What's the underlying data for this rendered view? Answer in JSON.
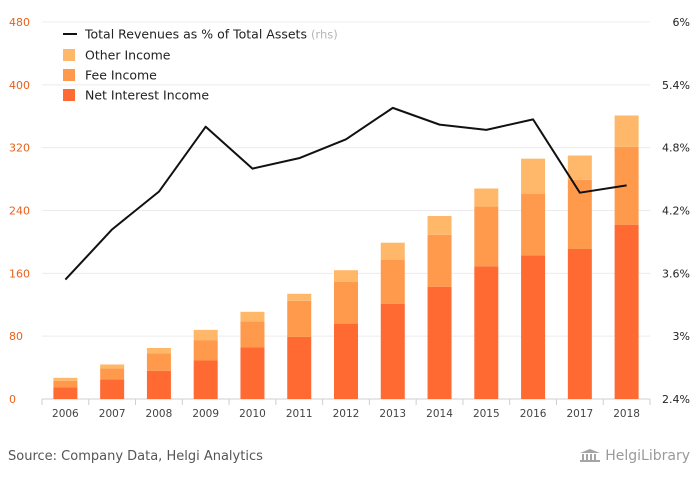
{
  "chart_data": {
    "type": "bar",
    "stacked": true,
    "categories": [
      "2006",
      "2007",
      "2008",
      "2009",
      "2010",
      "2011",
      "2012",
      "2013",
      "2014",
      "2015",
      "2016",
      "2017",
      "2018"
    ],
    "series": [
      {
        "name": "Net Interest Income",
        "color": "#ff6a33",
        "values": [
          15,
          25,
          36,
          49,
          66,
          79,
          96,
          121,
          143,
          169,
          183,
          191,
          222
        ]
      },
      {
        "name": "Fee Income",
        "color": "#ff9a4d",
        "values": [
          8,
          14,
          22,
          26,
          33,
          46,
          53,
          56,
          66,
          76,
          78,
          88,
          99
        ]
      },
      {
        "name": "Other Income",
        "color": "#ffb86a",
        "values": [
          4,
          5,
          7,
          13,
          12,
          9,
          15,
          22,
          24,
          23,
          45,
          31,
          40
        ]
      }
    ],
    "line": {
      "name": "Total Revenues as % of Total Assets",
      "note": "(rhs)",
      "color": "#111111",
      "values": [
        3.54,
        4.02,
        4.38,
        5.0,
        4.6,
        4.7,
        4.88,
        5.18,
        5.02,
        4.97,
        5.07,
        4.37,
        4.44
      ]
    },
    "ylim": [
      0,
      480
    ],
    "y_ticks": [
      "0",
      "80",
      "160",
      "240",
      "320",
      "400",
      "480"
    ],
    "y2lim": [
      2.4,
      6.0
    ],
    "y2_ticks": [
      "2.4%",
      "3%",
      "3.6%",
      "4.2%",
      "4.8%",
      "5.4%",
      "6%"
    ],
    "grid": true,
    "legend_position": "top-left"
  },
  "footer": {
    "source": "Source: Company Data, Helgi Analytics",
    "logo_text": "HelgiLibrary"
  }
}
